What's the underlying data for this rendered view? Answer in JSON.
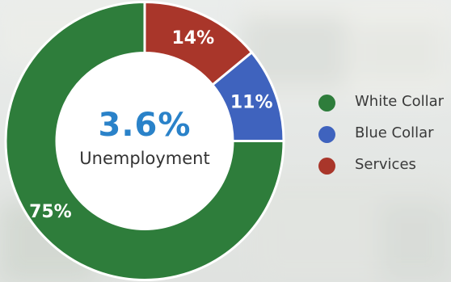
{
  "chart_data": {
    "type": "pie",
    "title": "",
    "center": {
      "value": "3.6%",
      "label": "Unemployment"
    },
    "slices": [
      {
        "name": "White Collar",
        "value": 75,
        "label": "75%",
        "color": "#2e7d3b"
      },
      {
        "name": "Blue Collar",
        "value": 11,
        "label": "11%",
        "color": "#3f63be"
      },
      {
        "name": "Services",
        "value": 14,
        "label": "14%",
        "color": "#a9362a"
      }
    ],
    "slice_order_clockwise_from_top": [
      "Services",
      "Blue Collar",
      "White Collar"
    ],
    "legend_position": "right",
    "center_value_color": "#2a82c9"
  }
}
